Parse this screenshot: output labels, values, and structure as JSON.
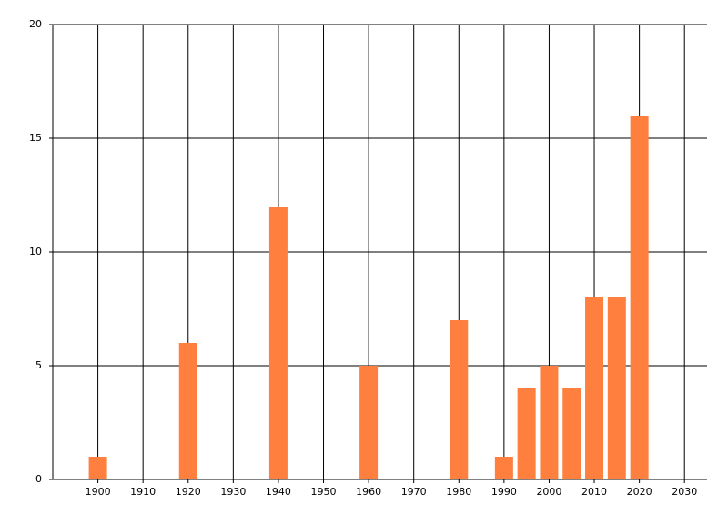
{
  "chart_data": {
    "type": "bar",
    "x": [
      1900,
      1920,
      1940,
      1960,
      1980,
      1990,
      1995,
      2000,
      2005,
      2010,
      2015,
      2020
    ],
    "values": [
      1,
      6,
      12,
      5,
      7,
      1,
      4,
      5,
      4,
      8,
      8,
      16
    ],
    "color": "#ff7f3f",
    "xlim": [
      1890,
      2035
    ],
    "xticks": [
      1900,
      1910,
      1920,
      1930,
      1940,
      1950,
      1960,
      1970,
      1980,
      1990,
      2000,
      2010,
      2020,
      2030
    ],
    "ylim": [
      0,
      20
    ],
    "yticks": [
      0,
      5,
      10,
      15,
      20
    ],
    "grid": true
  }
}
